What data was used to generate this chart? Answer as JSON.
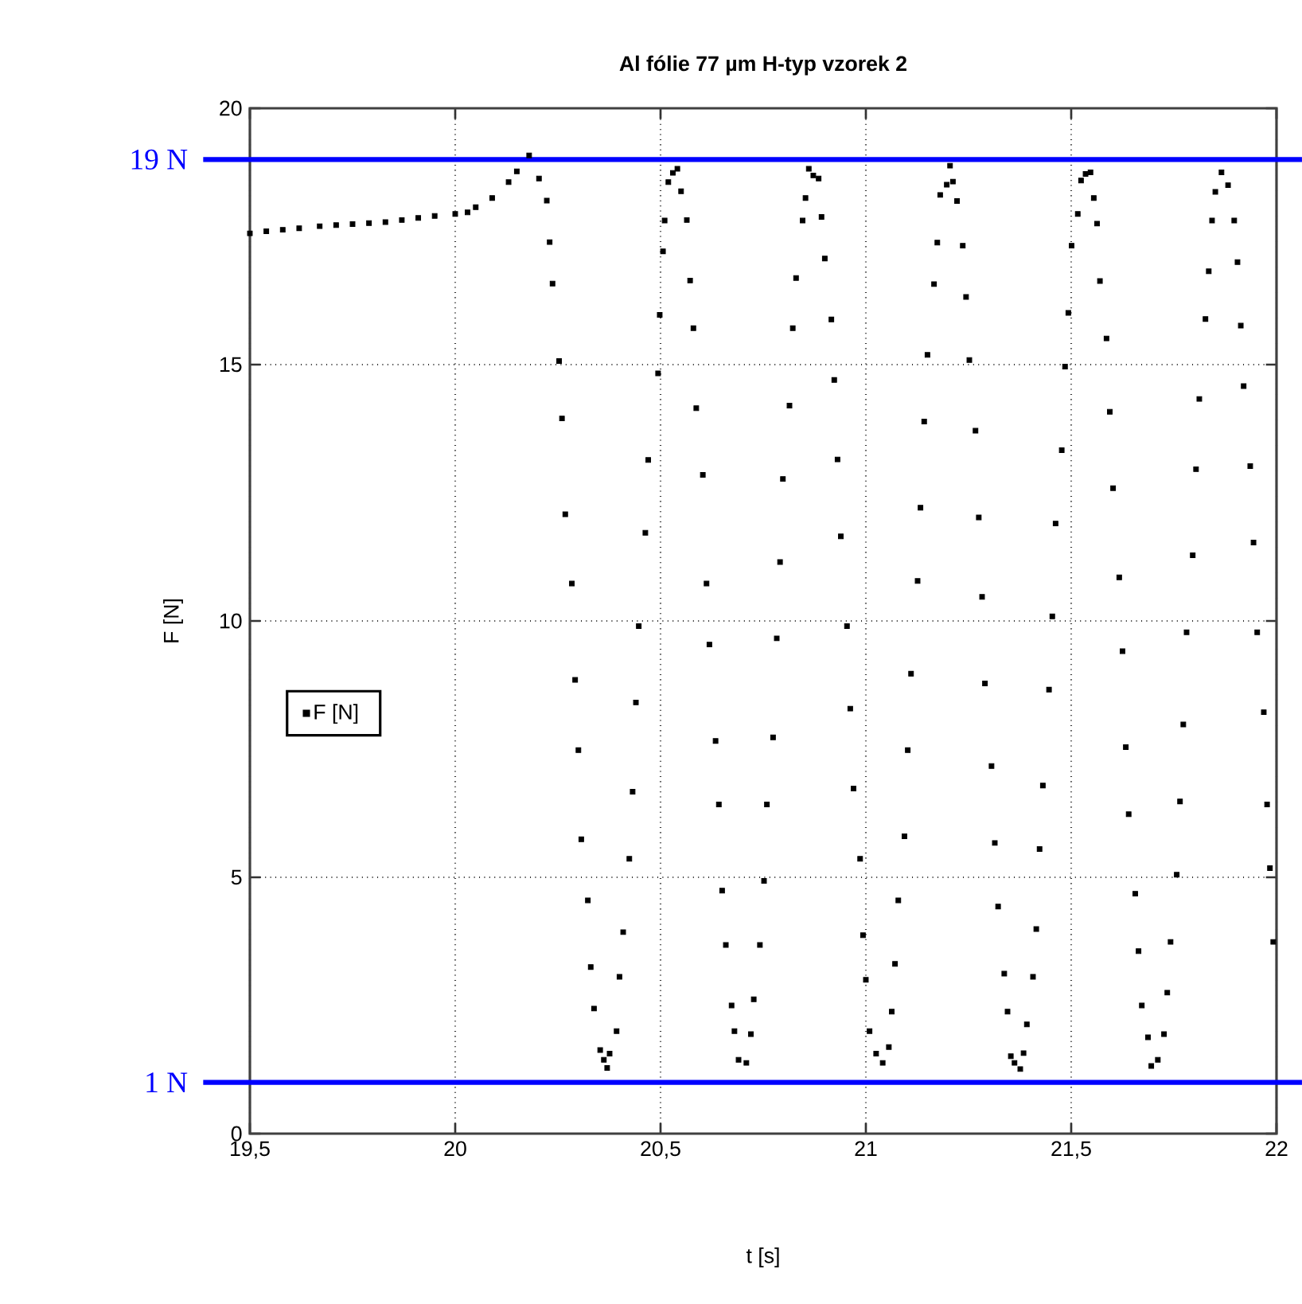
{
  "chart_data": {
    "type": "scatter",
    "title": "Al fólie 77 µm H-typ vzorek 2",
    "xlabel": "t [s]",
    "ylabel": "F [N]",
    "xlim": [
      19.5,
      22
    ],
    "ylim": [
      0,
      20
    ],
    "xticks": [
      {
        "value": 19.5,
        "label": "19,5"
      },
      20,
      {
        "value": 20.5,
        "label": "20,5"
      },
      21,
      {
        "value": 21.5,
        "label": "21,5"
      },
      22
    ],
    "yticks": [
      0,
      5,
      10,
      15,
      20
    ],
    "grid": true,
    "legend": "left",
    "marker": "square",
    "ref_lines": [
      {
        "axis": "y",
        "value": 19,
        "label": "19 N",
        "color": "#0000ff"
      },
      {
        "axis": "y",
        "value": 1,
        "label": "1 N",
        "color": "#0000ff"
      }
    ],
    "x": [
      19.5,
      19.54,
      19.58,
      19.62,
      19.67,
      19.71,
      19.75,
      19.79,
      19.83,
      19.87,
      19.91,
      19.95,
      20.0,
      20.03,
      20.05,
      20.09,
      20.13,
      20.15,
      20.18,
      20.204,
      20.223,
      20.23,
      20.237,
      20.253,
      20.26,
      20.268,
      20.284,
      20.292,
      20.3,
      20.307,
      20.323,
      20.33,
      20.338,
      20.353,
      20.362,
      20.37,
      20.376,
      20.393,
      20.4,
      20.409,
      20.424,
      20.432,
      20.44,
      20.447,
      20.463,
      20.47,
      20.494,
      20.498,
      20.506,
      20.51,
      20.519,
      20.53,
      20.541,
      20.55,
      20.564,
      20.572,
      20.58,
      20.587,
      20.603,
      20.612,
      20.619,
      20.634,
      20.642,
      20.65,
      20.659,
      20.673,
      20.68,
      20.69,
      20.709,
      20.72,
      20.727,
      20.742,
      20.752,
      20.759,
      20.774,
      20.783,
      20.791,
      20.798,
      20.814,
      20.822,
      20.83,
      20.846,
      20.853,
      20.861,
      20.872,
      20.885,
      20.892,
      20.9,
      20.916,
      20.923,
      20.931,
      20.939,
      20.954,
      20.962,
      20.97,
      20.986,
      20.993,
      21.0,
      21.009,
      21.025,
      21.041,
      21.056,
      21.063,
      21.071,
      21.079,
      21.094,
      21.102,
      21.11,
      21.126,
      21.133,
      21.142,
      21.15,
      21.166,
      21.174,
      21.181,
      21.197,
      21.205,
      21.212,
      21.222,
      21.236,
      21.244,
      21.252,
      21.267,
      21.275,
      21.283,
      21.29,
      21.306,
      21.314,
      21.322,
      21.337,
      21.345,
      21.353,
      21.362,
      21.376,
      21.384,
      21.392,
      21.407,
      21.415,
      21.423,
      21.431,
      21.446,
      21.454,
      21.462,
      21.477,
      21.485,
      21.493,
      21.501,
      21.516,
      21.524,
      21.535,
      21.547,
      21.555,
      21.563,
      21.57,
      21.586,
      21.594,
      21.602,
      21.617,
      21.625,
      21.633,
      21.64,
      21.656,
      21.664,
      21.672,
      21.687,
      21.695,
      21.711,
      21.726,
      21.734,
      21.742,
      21.757,
      21.765,
      21.773,
      21.781,
      21.796,
      21.804,
      21.812,
      21.827,
      21.835,
      21.843,
      21.851,
      21.866,
      21.882,
      21.897,
      21.905,
      21.913,
      21.92,
      21.936,
      21.944,
      21.953,
      21.969,
      21.977,
      21.984,
      21.992
    ],
    "series": [
      {
        "name": "F [N]",
        "color": "#000000",
        "values": [
          17.56,
          17.6,
          17.63,
          17.66,
          17.7,
          17.72,
          17.74,
          17.76,
          17.78,
          17.82,
          17.86,
          17.9,
          17.94,
          17.97,
          18.07,
          18.25,
          18.56,
          18.77,
          19.08,
          18.63,
          18.2,
          17.39,
          16.58,
          15.07,
          13.95,
          12.08,
          10.73,
          8.85,
          7.48,
          5.74,
          4.55,
          3.25,
          2.44,
          1.63,
          1.44,
          1.28,
          1.56,
          2.0,
          3.06,
          3.93,
          5.36,
          6.67,
          8.41,
          9.9,
          11.72,
          13.14,
          14.83,
          15.97,
          17.21,
          17.81,
          18.56,
          18.74,
          18.82,
          18.38,
          17.82,
          16.64,
          15.71,
          14.15,
          12.85,
          10.73,
          9.54,
          7.66,
          6.42,
          4.74,
          3.68,
          2.5,
          2.0,
          1.44,
          1.38,
          1.94,
          2.62,
          3.68,
          4.93,
          6.42,
          7.73,
          9.66,
          11.15,
          12.77,
          14.2,
          15.71,
          16.69,
          17.81,
          18.25,
          18.82,
          18.69,
          18.63,
          17.88,
          17.07,
          15.88,
          14.7,
          13.15,
          11.65,
          9.9,
          8.29,
          6.73,
          5.36,
          3.87,
          3.0,
          2.0,
          1.56,
          1.38,
          1.69,
          2.38,
          3.31,
          4.55,
          5.8,
          7.48,
          8.97,
          10.78,
          12.21,
          13.89,
          15.19,
          16.57,
          17.38,
          18.31,
          18.51,
          18.88,
          18.57,
          18.19,
          17.32,
          16.32,
          15.09,
          13.71,
          12.02,
          10.47,
          8.78,
          7.17,
          5.67,
          4.43,
          3.12,
          2.38,
          1.51,
          1.38,
          1.26,
          1.57,
          2.13,
          3.06,
          3.99,
          5.55,
          6.79,
          8.66,
          10.09,
          11.9,
          13.33,
          14.96,
          16.01,
          17.32,
          17.94,
          18.59,
          18.72,
          18.75,
          18.25,
          17.75,
          16.63,
          15.51,
          14.08,
          12.59,
          10.85,
          9.41,
          7.54,
          6.23,
          4.68,
          3.56,
          2.5,
          1.88,
          1.32,
          1.44,
          1.94,
          2.75,
          3.74,
          5.05,
          6.48,
          7.98,
          9.78,
          11.28,
          12.96,
          14.33,
          15.89,
          16.82,
          17.81,
          18.37,
          18.75,
          18.5,
          17.81,
          17.0,
          15.76,
          14.58,
          13.02,
          11.53,
          9.78,
          8.22,
          6.42,
          5.18,
          3.74
        ]
      }
    ]
  }
}
